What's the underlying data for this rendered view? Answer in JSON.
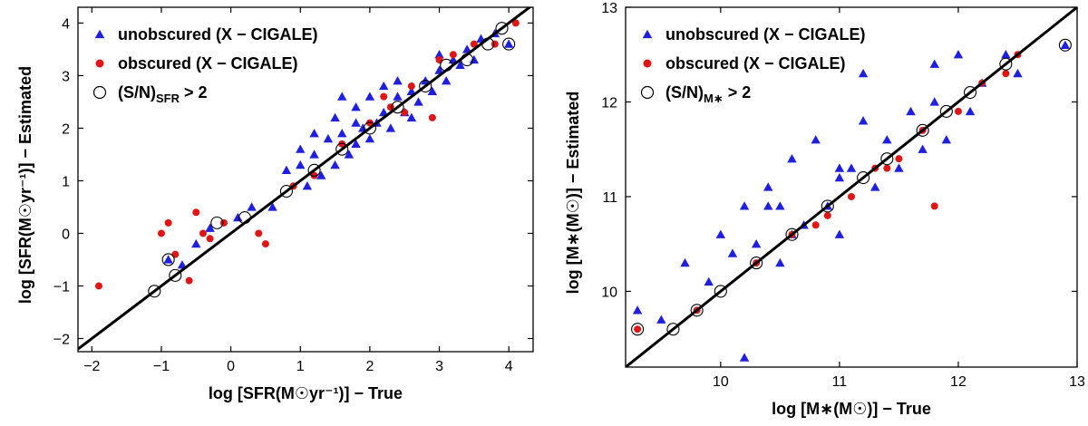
{
  "chart_data": [
    {
      "type": "scatter",
      "panel": "left",
      "title": "",
      "xlabel": "log [SFR(M☉yr⁻¹)] − True",
      "ylabel": "log [SFR(M☉yr⁻¹)] − Estimated",
      "xlim": [
        -2.2,
        4.35
      ],
      "ylim": [
        -2.25,
        4.3
      ],
      "xticks": [
        -2,
        -1,
        0,
        1,
        2,
        3,
        4
      ],
      "yticks": [
        -2,
        -1,
        0,
        1,
        2,
        3,
        4
      ],
      "xtick_labels": [
        "−2",
        "−1",
        "0",
        "1",
        "2",
        "3",
        "4"
      ],
      "ytick_labels": [
        "−2",
        "−1",
        "0",
        "1",
        "2",
        "3",
        "4"
      ],
      "identity_line": [
        [
          -2.2,
          -2.2
        ],
        [
          4.35,
          4.35
        ]
      ],
      "legend": {
        "placement": "top-left",
        "entries": [
          {
            "marker": "triangle",
            "color": "#1f1fe0",
            "label": "unobscured (X − CIGALE)"
          },
          {
            "marker": "dot",
            "color": "#e01515",
            "label": "obscured (X − CIGALE)"
          },
          {
            "marker": "open-circle",
            "color": "#000000",
            "label": "(S/N)",
            "subscript": "SFR",
            "suffix": " > 2"
          }
        ]
      },
      "series": [
        {
          "name": "unobscured (X − CIGALE)",
          "marker": "triangle",
          "color": "#1f1fe0",
          "x": [
            -0.9,
            -0.7,
            -0.5,
            -0.3,
            0.1,
            0.3,
            0.6,
            0.8,
            1.0,
            1.1,
            1.2,
            1.3,
            1.4,
            1.5,
            1.5,
            1.6,
            1.7,
            1.8,
            1.8,
            1.9,
            2.0,
            2.0,
            2.1,
            2.2,
            2.3,
            2.4,
            2.5,
            2.6,
            2.7,
            2.8,
            2.9,
            3.0,
            3.1,
            3.2,
            3.3,
            3.4,
            3.5,
            3.6,
            3.8,
            4.0,
            1.2,
            1.6,
            2.2,
            2.6,
            3.0,
            1.0,
            1.8,
            2.4
          ],
          "y": [
            -0.5,
            -0.6,
            -0.2,
            0.1,
            0.3,
            0.5,
            0.5,
            1.2,
            1.3,
            0.9,
            1.5,
            1.1,
            1.8,
            1.3,
            2.2,
            1.9,
            1.5,
            2.4,
            1.7,
            2.0,
            2.6,
            1.8,
            2.1,
            2.3,
            2.0,
            2.6,
            2.3,
            2.7,
            2.5,
            2.9,
            2.7,
            3.1,
            2.9,
            3.3,
            3.2,
            3.5,
            3.3,
            3.7,
            3.8,
            3.6,
            1.9,
            2.6,
            2.8,
            2.2,
            3.4,
            1.6,
            2.1,
            2.9
          ]
        },
        {
          "name": "obscured (X − CIGALE)",
          "marker": "dot",
          "color": "#e01515",
          "x": [
            -1.9,
            -1.0,
            -0.9,
            -0.8,
            -0.6,
            -0.5,
            -0.4,
            -0.3,
            -0.1,
            0.4,
            0.5,
            0.9,
            1.2,
            1.6,
            2.0,
            2.3,
            2.6,
            2.9,
            3.2,
            3.5,
            3.8,
            4.1,
            2.2,
            2.5,
            3.0
          ],
          "y": [
            -1.0,
            0.0,
            0.2,
            -0.4,
            -0.9,
            0.4,
            0.0,
            -0.1,
            0.2,
            0.0,
            -0.2,
            0.9,
            1.1,
            1.7,
            2.1,
            2.4,
            2.8,
            2.2,
            3.4,
            3.6,
            3.6,
            4.0,
            2.6,
            2.3,
            3.3
          ]
        },
        {
          "name": "(S/N)SFR > 2",
          "marker": "open-circle",
          "color": "#000000",
          "x": [
            -1.1,
            -0.9,
            -0.8,
            -0.2,
            0.2,
            0.8,
            1.2,
            1.6,
            2.0,
            2.4,
            2.8,
            3.1,
            3.4,
            3.7,
            3.9,
            4.0
          ],
          "y": [
            -1.1,
            -0.5,
            -0.8,
            0.2,
            0.3,
            0.8,
            1.2,
            1.6,
            2.0,
            2.4,
            2.8,
            3.2,
            3.3,
            3.6,
            3.9,
            3.6
          ]
        }
      ]
    },
    {
      "type": "scatter",
      "panel": "right",
      "title": "",
      "xlabel": "log [M∗(M☉)] − True",
      "ylabel": "log [M∗(M☉)] − Estimated",
      "xlim": [
        9.2,
        13.0
      ],
      "ylim": [
        9.2,
        13.0
      ],
      "xticks": [
        10,
        11,
        12,
        13
      ],
      "yticks": [
        10,
        11,
        12,
        13
      ],
      "xtick_labels": [
        "10",
        "11",
        "12",
        "13"
      ],
      "ytick_labels": [
        "10",
        "11",
        "12",
        "13"
      ],
      "identity_line": [
        [
          9.2,
          9.2
        ],
        [
          13.0,
          13.0
        ]
      ],
      "legend": {
        "placement": "top-left",
        "entries": [
          {
            "marker": "triangle",
            "color": "#1f1fe0",
            "label": "unobscured (X − CIGALE)"
          },
          {
            "marker": "dot",
            "color": "#e01515",
            "label": "obscured (X − CIGALE)"
          },
          {
            "marker": "open-circle",
            "color": "#000000",
            "label": "(S/N)",
            "subscript": "M∗",
            "suffix": " > 2"
          }
        ]
      },
      "series": [
        {
          "name": "unobscured (X − CIGALE)",
          "marker": "triangle",
          "color": "#1f1fe0",
          "x": [
            9.3,
            9.5,
            9.7,
            9.9,
            10.0,
            10.1,
            10.2,
            10.2,
            10.3,
            10.4,
            10.5,
            10.5,
            10.6,
            10.7,
            10.8,
            10.9,
            11.0,
            11.0,
            11.1,
            11.2,
            11.3,
            11.4,
            11.5,
            11.6,
            11.7,
            11.8,
            11.9,
            12.0,
            12.1,
            12.2,
            12.4,
            12.5,
            12.9,
            10.6,
            11.2,
            11.8,
            10.4,
            11.0
          ],
          "y": [
            9.8,
            9.7,
            10.3,
            10.1,
            10.6,
            10.4,
            9.3,
            10.9,
            10.5,
            11.1,
            10.3,
            10.9,
            11.4,
            10.7,
            11.6,
            10.9,
            11.2,
            10.6,
            11.3,
            12.3,
            11.1,
            11.6,
            11.3,
            11.9,
            11.5,
            12.0,
            11.6,
            12.5,
            11.9,
            12.2,
            12.5,
            12.3,
            12.6,
            10.6,
            11.8,
            12.4,
            10.9,
            11.3
          ]
        },
        {
          "name": "obscured (X − CIGALE)",
          "marker": "dot",
          "color": "#e01515",
          "x": [
            9.3,
            9.8,
            10.3,
            10.6,
            10.9,
            11.1,
            11.3,
            11.5,
            11.7,
            11.8,
            12.0,
            12.2,
            12.4,
            12.5,
            10.8,
            11.4
          ],
          "y": [
            9.6,
            9.8,
            10.3,
            10.6,
            10.8,
            11.0,
            11.3,
            11.4,
            11.7,
            10.9,
            11.9,
            12.2,
            12.3,
            12.5,
            10.7,
            11.3
          ]
        },
        {
          "name": "(S/N)M∗ > 2",
          "marker": "open-circle",
          "color": "#000000",
          "x": [
            9.3,
            9.6,
            9.8,
            10.0,
            10.3,
            10.6,
            10.9,
            11.2,
            11.4,
            11.7,
            11.9,
            12.1,
            12.4,
            12.9
          ],
          "y": [
            9.6,
            9.6,
            9.8,
            10.0,
            10.3,
            10.6,
            10.9,
            11.2,
            11.4,
            11.7,
            11.9,
            12.1,
            12.4,
            12.6
          ]
        }
      ]
    }
  ]
}
